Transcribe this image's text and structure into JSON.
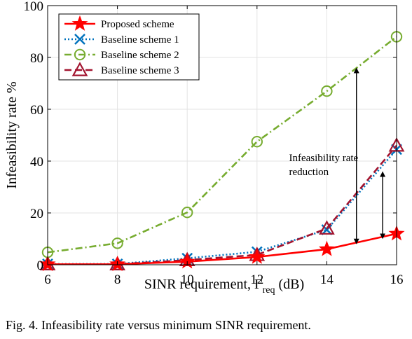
{
  "chart_data": {
    "type": "line",
    "title": "",
    "xlabel": "SINR requirement, Γ",
    "xlabel_sub": "req",
    "xlabel_unit": " (dB)",
    "ylabel": "Infeasibility rate %",
    "x": [
      6,
      8,
      10,
      12,
      14,
      16
    ],
    "xlim": [
      6,
      16
    ],
    "ylim": [
      0,
      100
    ],
    "xticks": [
      6,
      8,
      10,
      12,
      14,
      16
    ],
    "yticks": [
      0,
      20,
      40,
      60,
      80,
      100
    ],
    "grid": true,
    "legend_position": "top-left",
    "series": [
      {
        "name": "Proposed scheme",
        "values": [
          0.2,
          0.2,
          1.2,
          3.0,
          6.0,
          12.0
        ],
        "color": "#ff0000",
        "dash": "solid",
        "marker": "star"
      },
      {
        "name": "Baseline scheme 1",
        "values": [
          0.3,
          0.3,
          2.5,
          5.0,
          13.5,
          44.5
        ],
        "color": "#0072bd",
        "dash": "dotted",
        "marker": "x"
      },
      {
        "name": "Baseline scheme 2",
        "values": [
          4.8,
          8.3,
          20.2,
          47.5,
          67.0,
          88.0
        ],
        "color": "#77ac30",
        "dash": "dashdot",
        "marker": "circle"
      },
      {
        "name": "Baseline scheme 3",
        "values": [
          0.2,
          0.2,
          1.8,
          3.8,
          14.0,
          46.0
        ],
        "color": "#a2142f",
        "dash": "dashed",
        "marker": "triangle"
      }
    ],
    "annotations": [
      {
        "text_line1": "Infeasibility rate",
        "text_line2": "reduction",
        "x": 13.6,
        "y": 40
      }
    ],
    "arrows": [
      {
        "x": 14.85,
        "y_from": 9.0,
        "y_to": 75.0
      },
      {
        "x": 15.6,
        "y_from": 11.0,
        "y_to": 35.0
      }
    ]
  },
  "caption": "Fig. 4.  Infeasibility rate versus minimum SINR requirement."
}
